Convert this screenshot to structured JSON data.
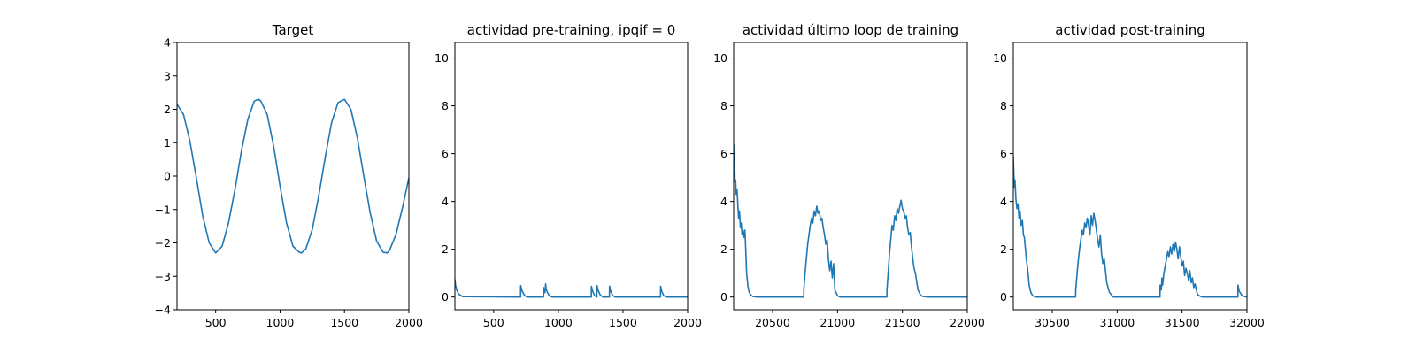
{
  "colors": {
    "series": "#1f77b4",
    "axes": "#000000",
    "background": "#ffffff"
  },
  "chart_data": [
    {
      "type": "line",
      "title": "Target",
      "xlabel": "",
      "ylabel": "",
      "xlim": [
        200,
        2000
      ],
      "ylim": [
        -4,
        4
      ],
      "xticks": [
        500,
        1000,
        1500,
        2000
      ],
      "yticks": [
        -4,
        -3,
        -2,
        -1,
        0,
        1,
        2,
        3,
        4
      ],
      "xtick_labels": [
        "500",
        "1000",
        "1500",
        "2000"
      ],
      "ytick_labels": [
        "−4",
        "−3",
        "−2",
        "−1",
        "0",
        "1",
        "2",
        "3",
        "4"
      ],
      "grid": false,
      "series": [
        {
          "x": [
            200,
            250,
            300,
            350,
            400,
            450,
            500,
            550,
            600,
            650,
            700,
            750,
            800,
            833,
            850,
            900,
            950,
            1000,
            1050,
            1100,
            1150,
            1167,
            1200,
            1250,
            1300,
            1350,
            1400,
            1450,
            1500,
            1550,
            1600,
            1650,
            1700,
            1750,
            1800,
            1833,
            1850,
            1900,
            1950,
            2000
          ],
          "y": [
            2.15,
            1.85,
            1.05,
            -0.05,
            -1.2,
            -2.0,
            -2.3,
            -2.1,
            -1.4,
            -0.4,
            0.75,
            1.7,
            2.25,
            2.3,
            2.25,
            1.85,
            0.9,
            -0.3,
            -1.4,
            -2.1,
            -2.28,
            -2.3,
            -2.18,
            -1.6,
            -0.6,
            0.55,
            1.6,
            2.2,
            2.3,
            2.0,
            1.15,
            0.0,
            -1.1,
            -1.95,
            -2.28,
            -2.3,
            -2.22,
            -1.75,
            -0.95,
            -0.05
          ]
        }
      ]
    },
    {
      "type": "line",
      "title": "actividad pre-training, ipqif = 0",
      "xlabel": "",
      "ylabel": "",
      "xlim": [
        200,
        2000
      ],
      "ylim": [
        -0.53,
        10.65
      ],
      "xticks": [
        500,
        1000,
        1500,
        2000
      ],
      "yticks": [
        0,
        2,
        4,
        6,
        8,
        10
      ],
      "xtick_labels": [
        "500",
        "1000",
        "1500",
        "2000"
      ],
      "ytick_labels": [
        "0",
        "2",
        "4",
        "6",
        "8",
        "10"
      ],
      "grid": false,
      "series": [
        {
          "x": [
            200,
            205,
            215,
            230,
            260,
            700,
            708,
            709,
            720,
            740,
            760,
            885,
            886,
            890,
            896,
            902,
            905,
            915,
            930,
            950,
            1255,
            1256,
            1265,
            1280,
            1298,
            1299,
            1310,
            1325,
            1345,
            1395,
            1396,
            1405,
            1420,
            1440,
            1790,
            1791,
            1800,
            1815,
            1835,
            2000
          ],
          "y": [
            0.75,
            0.5,
            0.28,
            0.12,
            0.02,
            0.0,
            0.0,
            0.48,
            0.25,
            0.06,
            0.0,
            0.0,
            0.4,
            0.22,
            0.18,
            0.55,
            0.35,
            0.2,
            0.06,
            0.0,
            0.0,
            0.45,
            0.25,
            0.06,
            0.0,
            0.48,
            0.26,
            0.08,
            0.0,
            0.0,
            0.46,
            0.25,
            0.07,
            0.0,
            0.0,
            0.45,
            0.24,
            0.06,
            0.0,
            0.0
          ]
        }
      ]
    },
    {
      "type": "line",
      "title": "actividad último loop de training",
      "xlabel": "",
      "ylabel": "",
      "xlim": [
        20200,
        22000
      ],
      "ylim": [
        -0.53,
        10.65
      ],
      "xticks": [
        20500,
        21000,
        21500,
        22000
      ],
      "yticks": [
        0,
        2,
        4,
        6,
        8,
        10
      ],
      "xtick_labels": [
        "20500",
        "21000",
        "21500",
        "22000"
      ],
      "ytick_labels": [
        "0",
        "2",
        "4",
        "6",
        "8",
        "10"
      ],
      "grid": false,
      "series": [
        {
          "x": [
            20200,
            20203,
            20206,
            20210,
            20215,
            20220,
            20226,
            20232,
            20238,
            20245,
            20252,
            20258,
            20265,
            20272,
            20280,
            20287,
            20293,
            20300,
            20310,
            20320,
            20335,
            20350,
            20380,
            20740,
            20741,
            20750,
            20760,
            20770,
            20780,
            20790,
            20800,
            20810,
            20820,
            20830,
            20840,
            20850,
            20860,
            20870,
            20880,
            20890,
            20900,
            20910,
            20920,
            20930,
            20940,
            20950,
            20960,
            20970,
            20980,
            21000,
            21020,
            21050,
            21380,
            21381,
            21390,
            21400,
            21410,
            21420,
            21430,
            21440,
            21450,
            21460,
            21470,
            21480,
            21490,
            21500,
            21510,
            21520,
            21530,
            21540,
            21550,
            21560,
            21570,
            21580,
            21590,
            21600,
            21620,
            21640,
            21660,
            21700,
            22000
          ],
          "y": [
            6.4,
            5.5,
            5.9,
            4.8,
            4.9,
            4.3,
            4.5,
            3.9,
            3.3,
            3.6,
            2.9,
            3.1,
            2.6,
            2.8,
            2.5,
            2.8,
            2.0,
            1.0,
            0.45,
            0.2,
            0.07,
            0.02,
            0.0,
            0.0,
            0.35,
            1.0,
            1.6,
            2.2,
            2.6,
            3.0,
            3.3,
            3.1,
            3.6,
            3.4,
            3.8,
            3.5,
            3.6,
            3.2,
            3.3,
            2.9,
            2.6,
            2.2,
            2.4,
            1.6,
            1.1,
            1.5,
            0.8,
            1.4,
            0.3,
            0.05,
            0.0,
            0.0,
            0.0,
            0.3,
            1.0,
            1.8,
            2.4,
            3.0,
            2.8,
            3.4,
            3.2,
            3.7,
            3.5,
            3.8,
            4.05,
            3.7,
            3.6,
            3.3,
            3.4,
            2.9,
            2.6,
            2.7,
            2.1,
            1.6,
            1.2,
            1.0,
            0.3,
            0.08,
            0.02,
            0.0,
            0.0
          ]
        }
      ]
    },
    {
      "type": "line",
      "title": "actividad post-training",
      "xlabel": "",
      "ylabel": "",
      "xlim": [
        30200,
        32000
      ],
      "ylim": [
        -0.53,
        10.65
      ],
      "xticks": [
        30500,
        31000,
        31500,
        32000
      ],
      "yticks": [
        0,
        2,
        4,
        6,
        8,
        10
      ],
      "xtick_labels": [
        "30500",
        "31000",
        "31500",
        "32000"
      ],
      "ytick_labels": [
        "0",
        "2",
        "4",
        "6",
        "8",
        "10"
      ],
      "grid": false,
      "series": [
        {
          "x": [
            30200,
            30204,
            30208,
            30213,
            30220,
            30228,
            30236,
            30244,
            30252,
            30260,
            30270,
            30278,
            30285,
            30292,
            30300,
            30310,
            30322,
            30335,
            30350,
            30380,
            30680,
            30681,
            30690,
            30700,
            30710,
            30720,
            30730,
            30740,
            30750,
            30760,
            30770,
            30780,
            30790,
            30800,
            30810,
            30820,
            30830,
            30840,
            30850,
            30860,
            30870,
            30880,
            30890,
            30900,
            30920,
            30940,
            30970,
            31330,
            31331,
            31340,
            31345,
            31350,
            31360,
            31370,
            31380,
            31390,
            31400,
            31410,
            31420,
            31430,
            31440,
            31450,
            31460,
            31470,
            31480,
            31490,
            31500,
            31510,
            31520,
            31530,
            31540,
            31550,
            31560,
            31570,
            31580,
            31590,
            31600,
            31610,
            31620,
            31640,
            31660,
            31700,
            31930,
            31931,
            31940,
            31960,
            31980,
            32000
          ],
          "y": [
            5.9,
            5.2,
            4.6,
            4.9,
            4.1,
            3.7,
            3.9,
            3.3,
            3.6,
            3.0,
            3.2,
            2.6,
            2.5,
            2.1,
            1.6,
            1.2,
            0.5,
            0.2,
            0.05,
            0.0,
            0.0,
            0.3,
            0.9,
            1.5,
            2.0,
            2.4,
            2.8,
            2.6,
            3.1,
            2.9,
            3.3,
            3.0,
            2.6,
            3.4,
            3.0,
            3.5,
            3.2,
            2.8,
            2.4,
            2.1,
            2.6,
            1.8,
            1.4,
            1.6,
            0.6,
            0.2,
            0.0,
            0.0,
            0.5,
            0.3,
            0.8,
            0.5,
            1.0,
            1.3,
            1.6,
            1.9,
            1.7,
            2.1,
            1.8,
            2.2,
            1.9,
            2.3,
            2.0,
            1.6,
            2.1,
            1.7,
            1.3,
            1.5,
            0.9,
            1.2,
            1.0,
            0.7,
            1.1,
            0.6,
            0.8,
            0.4,
            0.55,
            0.3,
            0.1,
            0.03,
            0.0,
            0.0,
            0.0,
            0.5,
            0.25,
            0.08,
            0.02,
            0.0
          ]
        }
      ]
    }
  ]
}
